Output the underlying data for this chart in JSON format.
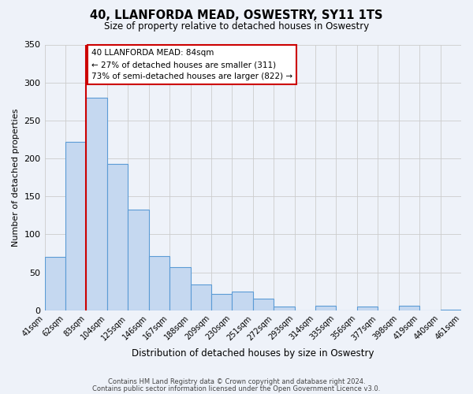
{
  "title": "40, LLANFORDA MEAD, OSWESTRY, SY11 1TS",
  "subtitle": "Size of property relative to detached houses in Oswestry",
  "xlabel": "Distribution of detached houses by size in Oswestry",
  "ylabel": "Number of detached properties",
  "tick_labels": [
    "41sqm",
    "62sqm",
    "83sqm",
    "104sqm",
    "125sqm",
    "146sqm",
    "167sqm",
    "188sqm",
    "209sqm",
    "230sqm",
    "251sqm",
    "272sqm",
    "293sqm",
    "314sqm",
    "335sqm",
    "356sqm",
    "377sqm",
    "398sqm",
    "419sqm",
    "440sqm",
    "461sqm"
  ],
  "bar_values": [
    70,
    222,
    280,
    193,
    133,
    71,
    57,
    34,
    22,
    25,
    15,
    5,
    0,
    6,
    0,
    5,
    0,
    6,
    0,
    1
  ],
  "bar_color": "#c5d8f0",
  "bar_edge_color": "#5b9bd5",
  "vline_index": 2,
  "vline_color": "#cc0000",
  "annotation_title": "40 LLANFORDA MEAD: 84sqm",
  "annotation_line1": "← 27% of detached houses are smaller (311)",
  "annotation_line2": "73% of semi-detached houses are larger (822) →",
  "annotation_box_facecolor": "#ffffff",
  "annotation_box_edgecolor": "#cc0000",
  "ylim": [
    0,
    350
  ],
  "yticks": [
    0,
    50,
    100,
    150,
    200,
    250,
    300,
    350
  ],
  "footer1": "Contains HM Land Registry data © Crown copyright and database right 2024.",
  "footer2": "Contains public sector information licensed under the Open Government Licence v3.0.",
  "bg_color": "#eef2f9"
}
